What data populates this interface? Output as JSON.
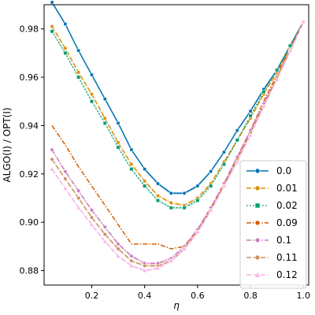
{
  "chart_data": {
    "type": "line",
    "xlabel": "η",
    "ylabel": "ALGO(I) / OPT(I)",
    "xlim": [
      0.02,
      1.02
    ],
    "ylim": [
      0.874,
      0.99
    ],
    "xticks": [
      0.2,
      0.4,
      0.6,
      0.8,
      1.0
    ],
    "yticks": [
      0.88,
      0.9,
      0.92,
      0.94,
      0.96,
      0.98
    ],
    "xtick_labels": [
      "0.2",
      "0.4",
      "0.6",
      "0.8",
      "1.0"
    ],
    "ytick_labels": [
      "0.88",
      "0.90",
      "0.92",
      "0.94",
      "0.96",
      "0.98"
    ],
    "legend_position": "bottom-right",
    "grid": false,
    "series": [
      {
        "name": "0.0",
        "color": "#0173b2",
        "dash": "solid",
        "marker": "circle",
        "band": true,
        "x": [
          0.05,
          0.1,
          0.15,
          0.2,
          0.25,
          0.3,
          0.35,
          0.4,
          0.45,
          0.5,
          0.55,
          0.6,
          0.65,
          0.7,
          0.75,
          0.8,
          0.85,
          0.9,
          0.95,
          1.0
        ],
        "y": [
          0.991,
          0.982,
          0.971,
          0.961,
          0.951,
          0.941,
          0.93,
          0.922,
          0.916,
          0.912,
          0.912,
          0.915,
          0.921,
          0.929,
          0.938,
          0.946,
          0.955,
          0.963,
          0.973,
          0.983
        ]
      },
      {
        "name": "0.01",
        "color": "#de8f05",
        "dash": "dashed",
        "marker": "circle",
        "band": true,
        "x": [
          0.05,
          0.1,
          0.15,
          0.2,
          0.25,
          0.3,
          0.35,
          0.4,
          0.45,
          0.5,
          0.55,
          0.6,
          0.65,
          0.7,
          0.75,
          0.8,
          0.85,
          0.9,
          0.95,
          1.0
        ],
        "y": [
          0.981,
          0.972,
          0.962,
          0.953,
          0.943,
          0.933,
          0.924,
          0.917,
          0.911,
          0.908,
          0.907,
          0.91,
          0.916,
          0.925,
          0.934,
          0.943,
          0.953,
          0.962,
          0.972,
          0.983
        ]
      },
      {
        "name": "0.02",
        "color": "#029e73",
        "dash": "dotted",
        "marker": "square",
        "band": true,
        "x": [
          0.05,
          0.1,
          0.15,
          0.2,
          0.25,
          0.3,
          0.35,
          0.4,
          0.45,
          0.5,
          0.55,
          0.6,
          0.65,
          0.7,
          0.75,
          0.8,
          0.85,
          0.9,
          0.95,
          1.0
        ],
        "y": [
          0.979,
          0.97,
          0.96,
          0.95,
          0.941,
          0.931,
          0.922,
          0.915,
          0.909,
          0.906,
          0.906,
          0.909,
          0.915,
          0.924,
          0.934,
          0.944,
          0.954,
          0.963,
          0.973,
          0.983
        ]
      },
      {
        "name": "0.09",
        "color": "#d55e00",
        "dash": "dashdot",
        "marker": "none",
        "band": false,
        "x": [
          0.05,
          0.1,
          0.15,
          0.2,
          0.25,
          0.3,
          0.35,
          0.4,
          0.45,
          0.5,
          0.55,
          0.6,
          0.65,
          0.7,
          0.75,
          0.8,
          0.85,
          0.9,
          0.95,
          1.0
        ],
        "y": [
          0.94,
          0.932,
          0.923,
          0.915,
          0.907,
          0.899,
          0.891,
          0.891,
          0.891,
          0.889,
          0.89,
          0.897,
          0.906,
          0.916,
          0.927,
          0.938,
          0.95,
          0.961,
          0.972,
          0.983
        ]
      },
      {
        "name": "0.1",
        "color": "#cc78bc",
        "dash": "dashdot",
        "marker": "diamond",
        "band": true,
        "x": [
          0.05,
          0.1,
          0.15,
          0.2,
          0.25,
          0.3,
          0.35,
          0.4,
          0.45,
          0.5,
          0.55,
          0.6,
          0.65,
          0.7,
          0.75,
          0.8,
          0.85,
          0.9,
          0.95,
          1.0
        ],
        "y": [
          0.93,
          0.921,
          0.913,
          0.905,
          0.898,
          0.891,
          0.886,
          0.883,
          0.883,
          0.885,
          0.89,
          0.897,
          0.906,
          0.916,
          0.927,
          0.938,
          0.949,
          0.96,
          0.971,
          0.983
        ]
      },
      {
        "name": "0.11",
        "color": "#ca9161",
        "dash": "dashed",
        "marker": "circle",
        "band": true,
        "x": [
          0.05,
          0.1,
          0.15,
          0.2,
          0.25,
          0.3,
          0.35,
          0.4,
          0.45,
          0.5,
          0.55,
          0.6,
          0.65,
          0.7,
          0.75,
          0.8,
          0.85,
          0.9,
          0.95,
          1.0
        ],
        "y": [
          0.926,
          0.918,
          0.91,
          0.902,
          0.895,
          0.889,
          0.884,
          0.882,
          0.882,
          0.884,
          0.889,
          0.896,
          0.905,
          0.915,
          0.926,
          0.937,
          0.948,
          0.96,
          0.971,
          0.983
        ]
      },
      {
        "name": "0.12",
        "color": "#fbafe4",
        "dash": "dashed",
        "marker": "triangle",
        "band": true,
        "x": [
          0.05,
          0.1,
          0.15,
          0.2,
          0.25,
          0.3,
          0.35,
          0.4,
          0.45,
          0.5,
          0.55,
          0.6,
          0.65,
          0.7,
          0.75,
          0.8,
          0.85,
          0.9,
          0.95,
          1.0
        ],
        "y": [
          0.922,
          0.914,
          0.906,
          0.899,
          0.892,
          0.886,
          0.882,
          0.88,
          0.881,
          0.884,
          0.889,
          0.896,
          0.905,
          0.915,
          0.925,
          0.936,
          0.948,
          0.959,
          0.971,
          0.983
        ]
      }
    ]
  }
}
